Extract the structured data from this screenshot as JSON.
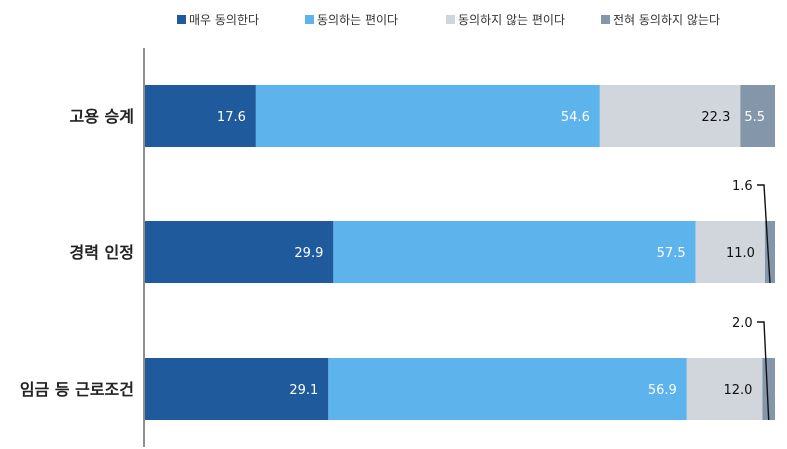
{
  "chart_data": {
    "type": "bar",
    "orientation": "horizontal",
    "stacked": true,
    "percent_stacked": true,
    "categories": [
      "고용 승계",
      "경력 인정",
      "임금 등 근로조건"
    ],
    "series": [
      {
        "name": "매우  동의한다",
        "values": [
          17.6,
          29.9,
          29.1
        ],
        "color": "#1f5a9c",
        "label_color": "#ffffff"
      },
      {
        "name": "동의하는 편이다",
        "values": [
          54.6,
          57.5,
          56.9
        ],
        "color": "#5db3ec",
        "label_color": "#ffffff"
      },
      {
        "name": "동의하지 않는 편이다",
        "values": [
          22.3,
          11.0,
          12.0
        ],
        "color": "#d1d6dc",
        "label_color": "#111111"
      },
      {
        "name": "전혀 동의하지 않는다",
        "values": [
          5.5,
          1.6,
          2.0
        ],
        "color": "#8497aa",
        "label_color": "#ffffff"
      }
    ],
    "value_labels": [
      [
        "17.6",
        "54.6",
        "22.3",
        "5.5"
      ],
      [
        "29.9",
        "57.5",
        "11.0",
        "1.6"
      ],
      [
        "29.1",
        "56.9",
        "12.0",
        "2.0"
      ]
    ],
    "callout_series_index": 3,
    "callout_categories": [
      1,
      2
    ],
    "xlim": [
      0,
      100
    ],
    "grid": false,
    "legend_position": "top"
  }
}
